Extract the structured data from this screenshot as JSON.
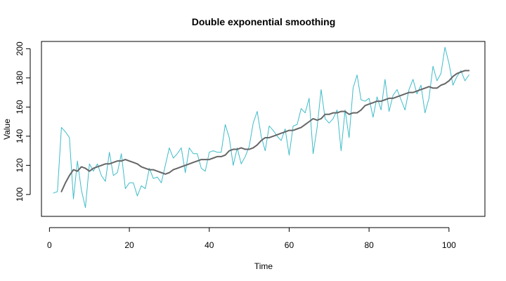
{
  "chart_data": {
    "type": "line",
    "title": "Double exponential smoothing",
    "xlabel": "Time",
    "ylabel": "Value",
    "xlim": [
      -2,
      109
    ],
    "ylim": [
      85,
      205
    ],
    "xticks": [
      0,
      20,
      40,
      60,
      80,
      100
    ],
    "yticks": [
      100,
      120,
      140,
      160,
      180,
      200
    ],
    "grid": false,
    "series": [
      {
        "color": "#3fbcc9",
        "width": 1,
        "x": [
          1,
          2,
          3,
          4,
          5,
          6,
          7,
          8,
          9,
          10,
          11,
          12,
          13,
          14,
          15,
          16,
          17,
          18,
          19,
          20,
          21,
          22,
          23,
          24,
          25,
          26,
          27,
          28,
          29,
          30,
          31,
          32,
          33,
          34,
          35,
          36,
          37,
          38,
          39,
          40,
          41,
          42,
          43,
          44,
          45,
          46,
          47,
          48,
          49,
          50,
          51,
          52,
          53,
          54,
          55,
          56,
          57,
          58,
          59,
          60,
          61,
          62,
          63,
          64,
          65,
          66,
          67,
          68,
          69,
          70,
          71,
          72,
          73,
          74,
          75,
          76,
          77,
          78,
          79,
          80,
          81,
          82,
          83,
          84,
          85,
          86,
          87,
          88,
          89,
          90,
          91,
          92,
          93,
          94,
          95,
          96,
          97,
          98,
          99,
          100,
          101,
          102,
          103,
          104,
          105
        ],
        "values": [
          101,
          102,
          146,
          143,
          139,
          97,
          123,
          103,
          91,
          121,
          116,
          121,
          113,
          109,
          129,
          113,
          115,
          128,
          104,
          108,
          108,
          99,
          106,
          104,
          118,
          111,
          112,
          108,
          120,
          132,
          125,
          128,
          132,
          115,
          132,
          128,
          128,
          118,
          116,
          129,
          130,
          129,
          129,
          148,
          139,
          120,
          132,
          121,
          126,
          133,
          149,
          157,
          140,
          130,
          147,
          144,
          140,
          137,
          145,
          127,
          147,
          148,
          159,
          156,
          166,
          128,
          146,
          172,
          152,
          149,
          152,
          158,
          130,
          158,
          139,
          173,
          182,
          165,
          164,
          166,
          153,
          167,
          158,
          179,
          157,
          168,
          172,
          165,
          158,
          172,
          179,
          169,
          175,
          156,
          166,
          188,
          178,
          183,
          201,
          190,
          175,
          181,
          185,
          178,
          182
        ]
      },
      {
        "color": "#666666",
        "width": 2,
        "x": [
          3,
          4,
          5,
          6,
          7,
          8,
          9,
          10,
          11,
          12,
          13,
          14,
          15,
          16,
          17,
          18,
          19,
          20,
          21,
          22,
          23,
          24,
          25,
          26,
          27,
          28,
          29,
          30,
          31,
          32,
          33,
          34,
          35,
          36,
          37,
          38,
          39,
          40,
          41,
          42,
          43,
          44,
          45,
          46,
          47,
          48,
          49,
          50,
          51,
          52,
          53,
          54,
          55,
          56,
          57,
          58,
          59,
          60,
          61,
          62,
          63,
          64,
          65,
          66,
          67,
          68,
          69,
          70,
          71,
          72,
          73,
          74,
          75,
          76,
          77,
          78,
          79,
          80,
          81,
          82,
          83,
          84,
          85,
          86,
          87,
          88,
          89,
          90,
          91,
          92,
          93,
          94,
          95,
          96,
          97,
          98,
          99,
          100,
          101,
          102,
          103,
          104,
          105
        ],
        "values": [
          102,
          108,
          113,
          117,
          116,
          119,
          118,
          116,
          118,
          119,
          120,
          121,
          121,
          122,
          123,
          123,
          124,
          123,
          122,
          121,
          119,
          118,
          117,
          117,
          116,
          115,
          114,
          115,
          117,
          118,
          119,
          120,
          121,
          122,
          123,
          124,
          124,
          124,
          125,
          126,
          126,
          127,
          130,
          131,
          131,
          132,
          131,
          131,
          132,
          134,
          137,
          139,
          139,
          140,
          141,
          142,
          143,
          144,
          144,
          145,
          146,
          148,
          150,
          152,
          151,
          152,
          155,
          155,
          156,
          156,
          157,
          157,
          155,
          156,
          156,
          158,
          161,
          162,
          163,
          164,
          164,
          165,
          166,
          166,
          167,
          168,
          169,
          170,
          170,
          171,
          172,
          173,
          174,
          173,
          173,
          175,
          176,
          178,
          181,
          183,
          184,
          185,
          185
        ]
      }
    ]
  }
}
